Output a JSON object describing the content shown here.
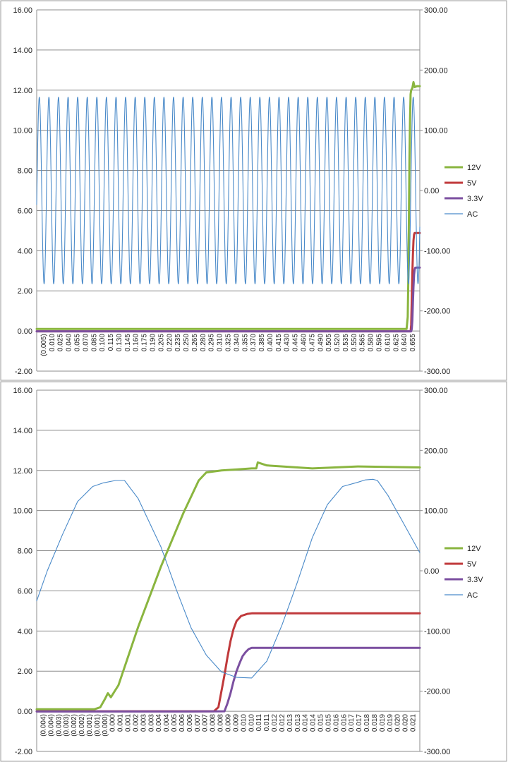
{
  "chart_data": [
    {
      "type": "line",
      "title": "",
      "xlabel": "",
      "ylabel": "",
      "ylim": [
        -2,
        16
      ],
      "y_ticks": [
        "-2.00",
        "0.00",
        "2.00",
        "4.00",
        "6.00",
        "8.00",
        "10.00",
        "12.00",
        "14.00",
        "16.00"
      ],
      "y2lim": [
        -300,
        300
      ],
      "y2_ticks": [
        "-300.00",
        "-200.00",
        "-100.00",
        "0.00",
        "100.00",
        "200.00",
        "300.00"
      ],
      "x_ticks": [
        "(0.005)",
        "0.010",
        "0.025",
        "0.040",
        "0.055",
        "0.070",
        "0.085",
        "0.100",
        "0.115",
        "0.130",
        "0.145",
        "0.160",
        "0.175",
        "0.190",
        "0.205",
        "0.220",
        "0.235",
        "0.250",
        "0.265",
        "0.280",
        "0.295",
        "0.310",
        "0.325",
        "0.340",
        "0.355",
        "0.370",
        "0.385",
        "0.400",
        "0.415",
        "0.430",
        "0.445",
        "0.460",
        "0.475",
        "0.490",
        "0.505",
        "0.520",
        "0.535",
        "0.550",
        "0.565",
        "0.580",
        "0.595",
        "0.610",
        "0.625",
        "0.640",
        "0.655"
      ],
      "x_range": [
        -0.005,
        0.661
      ],
      "grid": true,
      "legend": "right",
      "series": [
        {
          "name": "12V",
          "axis": "left",
          "color": "#8ab53f",
          "x": [
            -0.005,
            0.2,
            0.4,
            0.6,
            0.638,
            0.64,
            0.641,
            0.642,
            0.643,
            0.644,
            0.645,
            0.646,
            0.648,
            0.65,
            0.652,
            0.656,
            0.661
          ],
          "y": [
            0.1,
            0.1,
            0.1,
            0.1,
            0.1,
            0.7,
            2.5,
            5.5,
            8.5,
            10.5,
            11.8,
            12.0,
            12.1,
            12.4,
            12.15,
            12.2,
            12.2
          ]
        },
        {
          "name": "5V",
          "axis": "left",
          "color": "#c0393b",
          "x": [
            -0.005,
            0.2,
            0.4,
            0.6,
            0.645,
            0.646,
            0.647,
            0.648,
            0.649,
            0.65,
            0.651,
            0.652,
            0.654,
            0.661
          ],
          "y": [
            -0.02,
            -0.02,
            -0.02,
            -0.02,
            -0.02,
            0.3,
            1.5,
            2.8,
            3.8,
            4.5,
            4.8,
            4.88,
            4.88,
            4.88
          ]
        },
        {
          "name": "3.3V",
          "axis": "left",
          "color": "#7b4fa0",
          "x": [
            -0.005,
            0.2,
            0.4,
            0.6,
            0.646,
            0.647,
            0.648,
            0.649,
            0.65,
            0.651,
            0.652,
            0.653,
            0.655,
            0.661
          ],
          "y": [
            -0.02,
            -0.02,
            -0.02,
            -0.02,
            -0.02,
            0.1,
            0.5,
            1.4,
            2.2,
            2.8,
            3.05,
            3.15,
            3.16,
            3.16
          ]
        },
        {
          "name": "AC",
          "axis": "right",
          "color": "#4a8ac9",
          "kind": "sine",
          "amplitude": 155,
          "offset": 0,
          "frequency": 60,
          "phase_x": -0.0046
        }
      ]
    },
    {
      "type": "line",
      "title": "",
      "xlabel": "",
      "ylabel": "",
      "ylim": [
        -2,
        16
      ],
      "y_ticks": [
        "-2.00",
        "0.00",
        "2.00",
        "4.00",
        "6.00",
        "8.00",
        "10.00",
        "12.00",
        "14.00",
        "16.00"
      ],
      "y2lim": [
        -300,
        300
      ],
      "y2_ticks": [
        "-300.00",
        "-200.00",
        "-100.00",
        "0.00",
        "100.00",
        "200.00",
        "300.00"
      ],
      "x_ticks": [
        "(0.004)",
        "(0.004)",
        "(0.003)",
        "(0.003)",
        "(0.002)",
        "(0.002)",
        "(0.001)",
        "(0.001)",
        "(0.000)",
        "0.000",
        "0.001",
        "0.001",
        "0.002",
        "0.003",
        "0.003",
        "0.004",
        "0.004",
        "0.005",
        "0.006",
        "0.006",
        "0.007",
        "0.007",
        "0.008",
        "0.008",
        "0.009",
        "0.009",
        "0.010",
        "0.010",
        "0.011",
        "0.011",
        "0.012",
        "0.012",
        "0.013",
        "0.013",
        "0.014",
        "0.014",
        "0.015",
        "0.015",
        "0.016",
        "0.016",
        "0.017",
        "0.017",
        "0.018",
        "0.018",
        "0.019",
        "0.019",
        "0.020",
        "0.020",
        "0.021"
      ],
      "x_range": [
        -0.0042,
        0.0211
      ],
      "grid": true,
      "legend": "right",
      "series": [
        {
          "name": "12V",
          "axis": "left",
          "color": "#8ab53f",
          "x": [
            -0.0042,
            -0.0004,
            0.0,
            0.0003,
            0.0005,
            0.0007,
            0.0012,
            0.0025,
            0.004,
            0.0055,
            0.0065,
            0.007,
            0.008,
            0.009,
            0.01,
            0.0103,
            0.0104,
            0.011,
            0.014,
            0.017,
            0.0211
          ],
          "y": [
            0.1,
            0.1,
            0.2,
            0.6,
            0.9,
            0.7,
            1.3,
            4.2,
            7.2,
            9.9,
            11.5,
            11.9,
            12.0,
            12.05,
            12.1,
            12.1,
            12.4,
            12.25,
            12.1,
            12.2,
            12.15
          ]
        },
        {
          "name": "5V",
          "axis": "left",
          "color": "#c0393b",
          "x": [
            -0.0042,
            0.006,
            0.0075,
            0.0078,
            0.008,
            0.0082,
            0.0084,
            0.0086,
            0.0088,
            0.009,
            0.0093,
            0.0097,
            0.01,
            0.011,
            0.0211
          ],
          "y": [
            0.0,
            0.0,
            0.0,
            0.2,
            1.0,
            1.8,
            2.7,
            3.5,
            4.1,
            4.5,
            4.75,
            4.85,
            4.88,
            4.88,
            4.88
          ]
        },
        {
          "name": "3.3V",
          "axis": "left",
          "color": "#7b4fa0",
          "x": [
            -0.0042,
            0.006,
            0.0082,
            0.0084,
            0.0086,
            0.0088,
            0.009,
            0.0092,
            0.0094,
            0.0096,
            0.0098,
            0.01,
            0.011,
            0.0211
          ],
          "y": [
            -0.01,
            -0.01,
            0.0,
            0.4,
            0.9,
            1.5,
            2.0,
            2.4,
            2.75,
            2.95,
            3.1,
            3.16,
            3.16,
            3.16
          ]
        },
        {
          "name": "AC",
          "axis": "right",
          "color": "#4a8ac9",
          "x": [
            -0.0042,
            -0.0035,
            -0.0025,
            -0.0015,
            -0.0005,
            0.0002,
            0.001,
            0.0016,
            0.0025,
            0.004,
            0.005,
            0.006,
            0.007,
            0.008,
            0.009,
            0.01,
            0.011,
            0.012,
            0.013,
            0.014,
            0.015,
            0.016,
            0.017,
            0.0175,
            0.018,
            0.0183,
            0.019,
            0.02,
            0.0211
          ],
          "y": [
            -50,
            0,
            60,
            115,
            140,
            146,
            150,
            150,
            120,
            40,
            -30,
            -95,
            -140,
            -168,
            -177,
            -178,
            -150,
            -90,
            -20,
            55,
            110,
            140,
            147,
            151,
            152,
            150,
            125,
            80,
            30
          ]
        }
      ]
    }
  ]
}
